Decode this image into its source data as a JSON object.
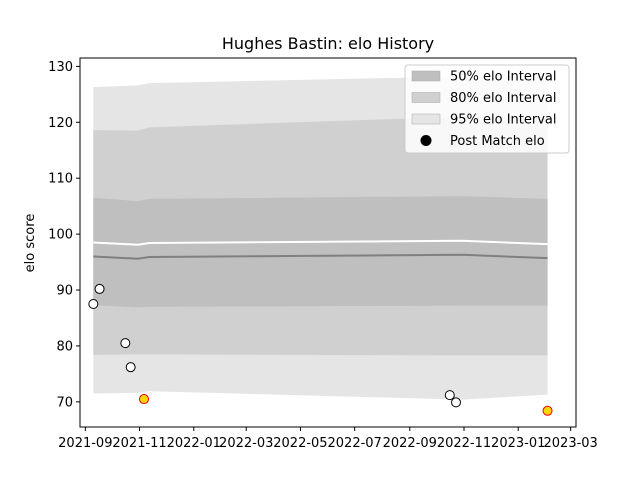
{
  "chart_data": {
    "type": "line",
    "title": "Hughes Bastin: elo History",
    "xlabel": "",
    "ylabel": "elo score",
    "xlim": [
      "2021-08-26",
      "2023-03-07"
    ],
    "ylim": [
      65.5,
      131.5
    ],
    "x_ticks": [
      "2021-09",
      "2021-11",
      "2022-01",
      "2022-03",
      "2022-05",
      "2022-07",
      "2022-09",
      "2022-11",
      "2023-01",
      "2023-03"
    ],
    "y_ticks": [
      70,
      80,
      90,
      100,
      110,
      120,
      130
    ],
    "grid": false,
    "legend": {
      "placement": "top-right",
      "entries": [
        "50% elo Interval",
        "80% elo Interval",
        "95% elo Interval",
        "Post Match elo"
      ]
    },
    "colors": {
      "band_50": "#bfbfbf",
      "band_80": "#d0d0d0",
      "band_95": "#e5e5e5",
      "mean_line": "#808080",
      "point_face": "#ffffff",
      "point_edge": "#000000",
      "highlight_face": "#ffd700",
      "highlight_edge": "#e8000b"
    },
    "series": [
      {
        "name": "95% elo Interval",
        "kind": "band",
        "x": [
          "2021-09-10",
          "2021-10-30",
          "2021-11-12",
          "2022-10-30",
          "2023-02-03"
        ],
        "upper": [
          126.3,
          126.6,
          127.0,
          128.2,
          127.8
        ],
        "lower": [
          71.5,
          71.6,
          71.9,
          70.4,
          71.3
        ]
      },
      {
        "name": "80% elo Interval",
        "kind": "band",
        "x": [
          "2021-09-10",
          "2021-10-30",
          "2021-11-12",
          "2022-10-30",
          "2023-02-03"
        ],
        "upper": [
          118.6,
          118.5,
          119.1,
          121.0,
          120.7
        ],
        "lower": [
          78.4,
          78.5,
          78.5,
          78.3,
          78.3
        ]
      },
      {
        "name": "50% elo Interval",
        "kind": "band",
        "x": [
          "2021-09-10",
          "2021-10-30",
          "2021-11-12",
          "2022-10-30",
          "2023-02-03"
        ],
        "upper": [
          106.5,
          105.9,
          106.3,
          106.8,
          106.3
        ],
        "lower": [
          87.3,
          86.9,
          87.0,
          87.2,
          87.2
        ]
      },
      {
        "name": "Mean elo",
        "kind": "line",
        "x": [
          "2021-09-10",
          "2021-10-30",
          "2021-11-12",
          "2022-10-30",
          "2023-02-03"
        ],
        "values": [
          96.0,
          95.6,
          95.9,
          96.3,
          95.7
        ]
      },
      {
        "name": "Post Match elo",
        "kind": "scatter",
        "x": [
          "2021-09-10",
          "2021-09-17",
          "2021-10-16",
          "2021-10-22",
          "2021-11-06",
          "2022-10-16",
          "2022-10-23",
          "2023-02-03"
        ],
        "values": [
          87.5,
          90.2,
          80.5,
          76.2,
          70.5,
          71.2,
          69.9,
          68.4
        ],
        "highlighted": [
          false,
          false,
          false,
          false,
          true,
          false,
          false,
          true
        ]
      }
    ]
  }
}
